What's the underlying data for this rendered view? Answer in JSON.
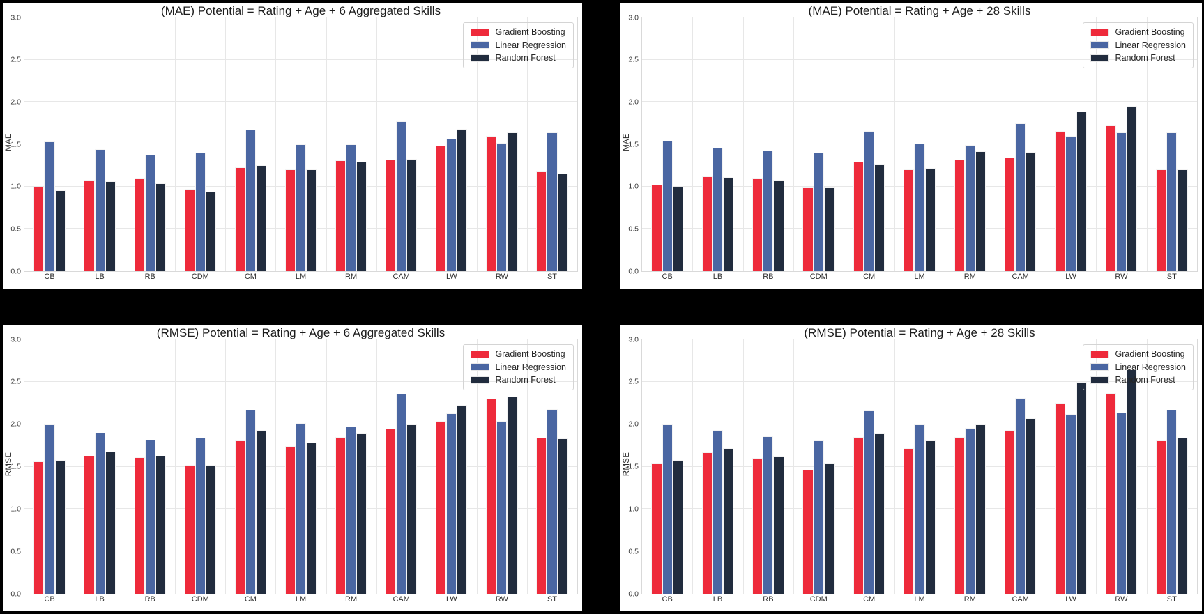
{
  "page": {
    "background": "#000000",
    "panel_background": "#ffffff"
  },
  "colors": {
    "gradient_boosting": "#ee2a3b",
    "linear_regression": "#4a66a2",
    "random_forest": "#212c3e",
    "gridline": "#e7e7e7"
  },
  "chart_data": [
    {
      "id": "mae-6-aggregated-skills",
      "type": "bar",
      "title": "(MAE) Potential = Rating + Age + 6 Aggregated Skills",
      "xlabel": "",
      "ylabel": "MAE",
      "ylim": [
        0.0,
        3.0
      ],
      "yticks": [
        0.0,
        0.5,
        1.0,
        1.5,
        2.0,
        2.5,
        3.0
      ],
      "grid": true,
      "legend_position": "upper right",
      "categories": [
        "CB",
        "LB",
        "RB",
        "CDM",
        "CM",
        "LM",
        "RM",
        "CAM",
        "LW",
        "RW",
        "ST"
      ],
      "series": [
        {
          "name": "Gradient Boosting",
          "color": "#ee2a3b",
          "values": [
            1.0,
            1.08,
            1.1,
            0.97,
            1.23,
            1.2,
            1.31,
            1.32,
            1.48,
            1.6,
            1.18
          ]
        },
        {
          "name": "Linear Regression",
          "color": "#4a66a2",
          "values": [
            1.53,
            1.44,
            1.38,
            1.4,
            1.67,
            1.5,
            1.5,
            1.77,
            1.57,
            1.52,
            1.64
          ]
        },
        {
          "name": "Random Forest",
          "color": "#212c3e",
          "values": [
            0.96,
            1.06,
            1.04,
            0.94,
            1.25,
            1.2,
            1.29,
            1.33,
            1.68,
            1.64,
            1.15
          ]
        }
      ]
    },
    {
      "id": "mae-28-skills",
      "type": "bar",
      "title": "(MAE) Potential = Rating + Age + 28 Skills",
      "xlabel": "",
      "ylabel": "MAE",
      "ylim": [
        0.0,
        3.0
      ],
      "yticks": [
        0.0,
        0.5,
        1.0,
        1.5,
        2.0,
        2.5,
        3.0
      ],
      "grid": true,
      "legend_position": "upper right",
      "categories": [
        "CB",
        "LB",
        "RB",
        "CDM",
        "CM",
        "LM",
        "RM",
        "CAM",
        "LW",
        "RW",
        "ST"
      ],
      "series": [
        {
          "name": "Gradient Boosting",
          "color": "#ee2a3b",
          "values": [
            1.02,
            1.12,
            1.1,
            0.99,
            1.29,
            1.2,
            1.32,
            1.34,
            1.66,
            1.72,
            1.2
          ]
        },
        {
          "name": "Linear Regression",
          "color": "#4a66a2",
          "values": [
            1.54,
            1.46,
            1.43,
            1.4,
            1.66,
            1.51,
            1.49,
            1.75,
            1.6,
            1.64,
            1.64
          ]
        },
        {
          "name": "Random Forest",
          "color": "#212c3e",
          "values": [
            1.0,
            1.11,
            1.08,
            0.99,
            1.26,
            1.22,
            1.42,
            1.41,
            1.89,
            1.95,
            1.2
          ]
        }
      ]
    },
    {
      "id": "rmse-6-aggregated-skills",
      "type": "bar",
      "title": "(RMSE) Potential = Rating + Age + 6 Aggregated Skills",
      "xlabel": "",
      "ylabel": "RMSE",
      "ylim": [
        0.0,
        3.0
      ],
      "yticks": [
        0.0,
        0.5,
        1.0,
        1.5,
        2.0,
        2.5,
        3.0
      ],
      "grid": true,
      "legend_position": "upper right",
      "categories": [
        "CB",
        "LB",
        "RB",
        "CDM",
        "CM",
        "LM",
        "RM",
        "CAM",
        "LW",
        "RW",
        "ST"
      ],
      "series": [
        {
          "name": "Gradient Boosting",
          "color": "#ee2a3b",
          "values": [
            1.56,
            1.63,
            1.61,
            1.52,
            1.81,
            1.74,
            1.85,
            1.95,
            2.04,
            2.3,
            1.84
          ]
        },
        {
          "name": "Linear Regression",
          "color": "#4a66a2",
          "values": [
            2.0,
            1.9,
            1.82,
            1.84,
            2.17,
            2.01,
            1.97,
            2.36,
            2.13,
            2.04,
            2.18
          ]
        },
        {
          "name": "Random Forest",
          "color": "#212c3e",
          "values": [
            1.58,
            1.68,
            1.63,
            1.52,
            1.93,
            1.78,
            1.89,
            2.0,
            2.23,
            2.33,
            1.83
          ]
        }
      ]
    },
    {
      "id": "rmse-28-skills",
      "type": "bar",
      "title": "(RMSE) Potential = Rating + Age + 28 Skills",
      "xlabel": "",
      "ylabel": "RMSE",
      "ylim": [
        0.0,
        3.0
      ],
      "yticks": [
        0.0,
        0.5,
        1.0,
        1.5,
        2.0,
        2.5,
        3.0
      ],
      "grid": true,
      "legend_position": "upper right",
      "categories": [
        "CB",
        "LB",
        "RB",
        "CDM",
        "CM",
        "LM",
        "RM",
        "CAM",
        "LW",
        "RW",
        "ST"
      ],
      "series": [
        {
          "name": "Gradient Boosting",
          "color": "#ee2a3b",
          "values": [
            1.54,
            1.67,
            1.6,
            1.46,
            1.85,
            1.72,
            1.85,
            1.93,
            2.25,
            2.37,
            1.81
          ]
        },
        {
          "name": "Linear Regression",
          "color": "#4a66a2",
          "values": [
            2.0,
            1.93,
            1.86,
            1.81,
            2.16,
            2.0,
            1.96,
            2.31,
            2.12,
            2.14,
            2.17
          ]
        },
        {
          "name": "Random Forest",
          "color": "#212c3e",
          "values": [
            1.58,
            1.72,
            1.62,
            1.54,
            1.89,
            1.81,
            2.0,
            2.07,
            2.5,
            2.65,
            1.84
          ]
        }
      ]
    }
  ]
}
